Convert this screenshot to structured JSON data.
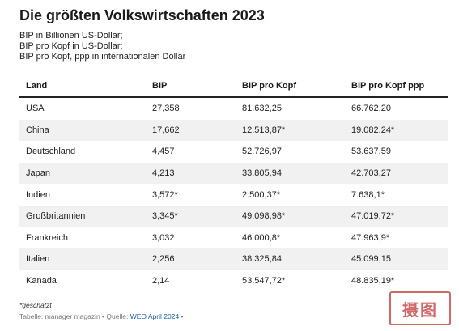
{
  "title": "Die größten Volkswirtschaften 2023",
  "subtitle_lines": [
    "BIP in Billionen US-Dollar;",
    "BIP pro Kopf in US-Dollar;",
    "BIP pro Kopf, ppp in internationalen Dollar"
  ],
  "table": {
    "headers": [
      "Land",
      "BIP",
      "BIP pro Kopf",
      "BIP pro Kopf ppp"
    ],
    "rows": [
      [
        "USA",
        "27,358",
        "81.632,25",
        "66.762,20"
      ],
      [
        "China",
        "17,662",
        "12.513,87*",
        "19.082,24*"
      ],
      [
        "Deutschland",
        "4,457",
        "52.726,97",
        "53.637,59"
      ],
      [
        "Japan",
        "4,213",
        "33.805,94",
        "42.703,27"
      ],
      [
        "Indien",
        "3,572*",
        "2.500,37*",
        "7.638,1*"
      ],
      [
        "Großbritannien",
        "3,345*",
        "49.098,98*",
        "47.019,72*"
      ],
      [
        "Frankreich",
        "3,032",
        "46.000,8*",
        "47.963,9*"
      ],
      [
        "Italien",
        "2,256",
        "38.325,84",
        "45.099,15"
      ],
      [
        "Kanada",
        "2,14",
        "53.547,72*",
        "48.835,19*"
      ]
    ]
  },
  "footnote": "*geschätzt",
  "source": {
    "prefix": "Tabelle: manager magazin • Quelle: ",
    "link": "WEO April 2024",
    "suffix": " •"
  },
  "watermark": {
    "text": "摄图",
    "color": "#c94d4d"
  }
}
